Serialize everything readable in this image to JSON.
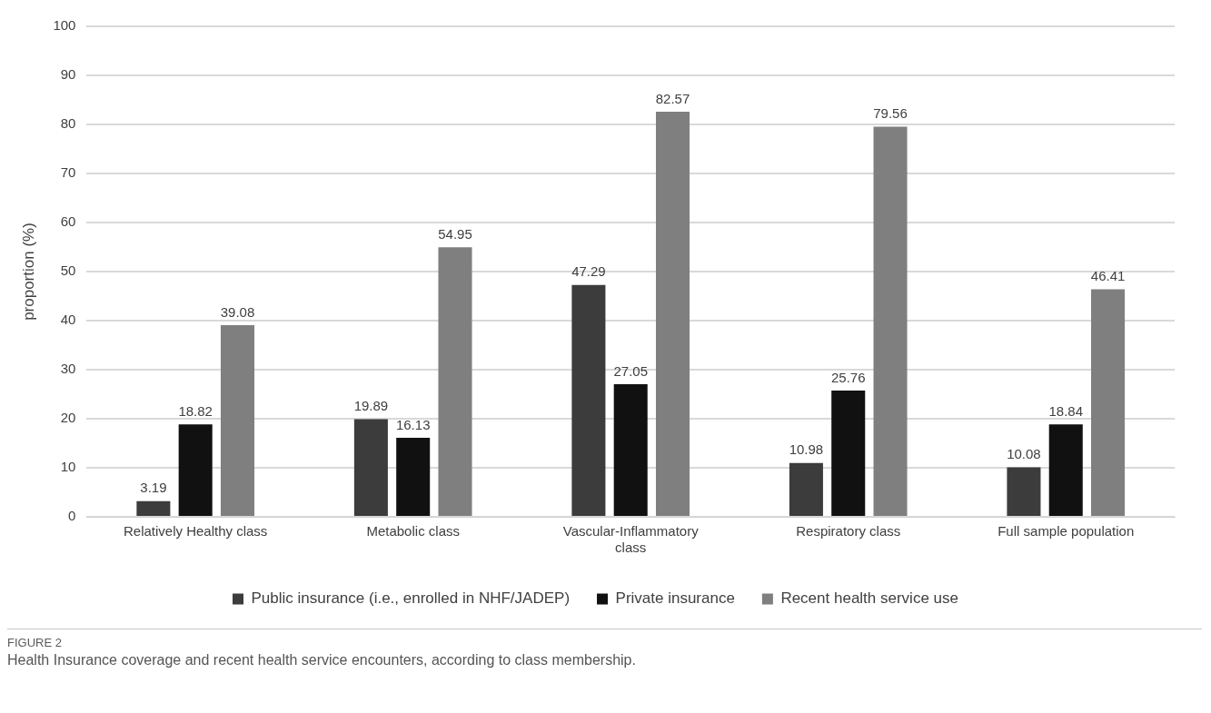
{
  "chart_data": {
    "type": "bar",
    "ylabel": "proportion (%)",
    "categories": [
      "Relatively Healthy class",
      "Metabolic class",
      "Vascular-Inflammatory class",
      "Respiratory class",
      "Full sample population"
    ],
    "series": [
      {
        "name": "Public insurance (i.e., enrolled in NHF/JADEP)",
        "color": "#3c3c3c",
        "values": [
          3.19,
          19.89,
          47.29,
          10.98,
          10.08
        ]
      },
      {
        "name": "Private insurance",
        "color": "#111111",
        "values": [
          18.82,
          16.13,
          27.05,
          25.76,
          18.84
        ]
      },
      {
        "name": "Recent health service use",
        "color": "#7f7f7f",
        "values": [
          39.08,
          54.95,
          82.57,
          79.56,
          46.41
        ]
      }
    ],
    "ylim": [
      0,
      100
    ],
    "yticks": [
      0,
      10,
      20,
      30,
      40,
      50,
      60,
      70,
      80,
      90,
      100
    ],
    "grid": "y",
    "legend": "bottom",
    "data_labels": true,
    "annotations": [
      "FIGURE 2",
      "Health Insurance coverage and recent health service encounters, according to class membership."
    ]
  }
}
